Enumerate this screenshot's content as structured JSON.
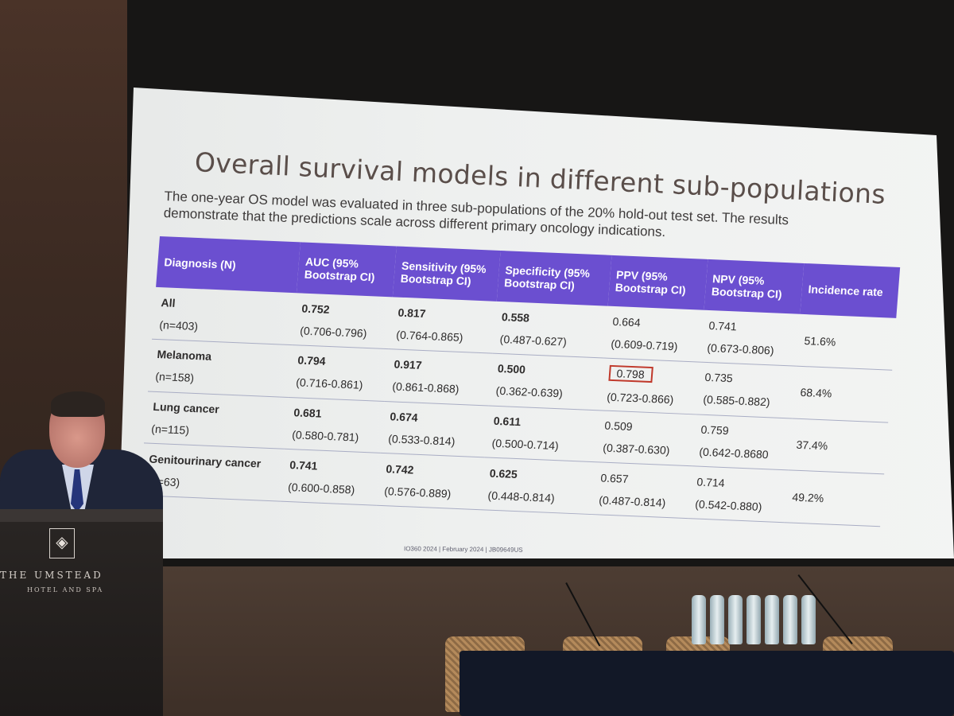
{
  "slide": {
    "title": "Overall survival models in different sub-populations",
    "subtitle": "The one-year OS model was evaluated in three sub-populations of the 20% hold-out test set. The results demonstrate that the predictions scale across different primary oncology indications.",
    "footer": "IO360 2024 | February 2024 | JB09649US",
    "table": {
      "headers": [
        "Diagnosis (N)",
        "AUC (95% Bootstrap CI)",
        "Sensitivity (95% Bootstrap CI)",
        "Specificity (95% Bootstrap CI)",
        "PPV (95% Bootstrap CI)",
        "NPV (95% Bootstrap CI)",
        "Incidence rate"
      ],
      "rows": [
        {
          "diagnosis": "All",
          "n": "(n=403)",
          "auc": "0.752",
          "auc_ci": "(0.706-0.796)",
          "sens": "0.817",
          "sens_ci": "(0.764-0.865)",
          "spec": "0.558",
          "spec_ci": "(0.487-0.627)",
          "ppv": "0.664",
          "ppv_ci": "(0.609-0.719)",
          "npv": "0.741",
          "npv_ci": "(0.673-0.806)",
          "incidence": "51.6%"
        },
        {
          "diagnosis": "Melanoma",
          "n": "(n=158)",
          "auc": "0.794",
          "auc_ci": "(0.716-0.861)",
          "sens": "0.917",
          "sens_ci": "(0.861-0.868)",
          "spec": "0.500",
          "spec_ci": "(0.362-0.639)",
          "ppv": "0.798",
          "ppv_ci": "(0.723-0.866)",
          "npv": "0.735",
          "npv_ci": "(0.585-0.882)",
          "incidence": "68.4%"
        },
        {
          "diagnosis": "Lung cancer",
          "n": "(n=115)",
          "auc": "0.681",
          "auc_ci": "(0.580-0.781)",
          "sens": "0.674",
          "sens_ci": "(0.533-0.814)",
          "spec": "0.611",
          "spec_ci": "(0.500-0.714)",
          "ppv": "0.509",
          "ppv_ci": "(0.387-0.630)",
          "npv": "0.759",
          "npv_ci": "(0.642-0.8680",
          "incidence": "37.4%"
        },
        {
          "diagnosis": "Genitourinary cancer",
          "n": "(n=63)",
          "auc": "0.741",
          "auc_ci": "(0.600-0.858)",
          "sens": "0.742",
          "sens_ci": "(0.576-0.889)",
          "spec": "0.625",
          "spec_ci": "(0.448-0.814)",
          "ppv": "0.657",
          "ppv_ci": "(0.487-0.814)",
          "npv": "0.714",
          "npv_ci": "(0.542-0.880)",
          "incidence": "49.2%"
        }
      ]
    }
  },
  "podium": {
    "name": "THE UMSTEAD",
    "sub": "HOTEL AND SPA",
    "logo_icon": "crest-icon"
  },
  "colors": {
    "header_bg": "#6b4fd0",
    "highlight": "#c0392b",
    "title": "#5a4e4a"
  }
}
